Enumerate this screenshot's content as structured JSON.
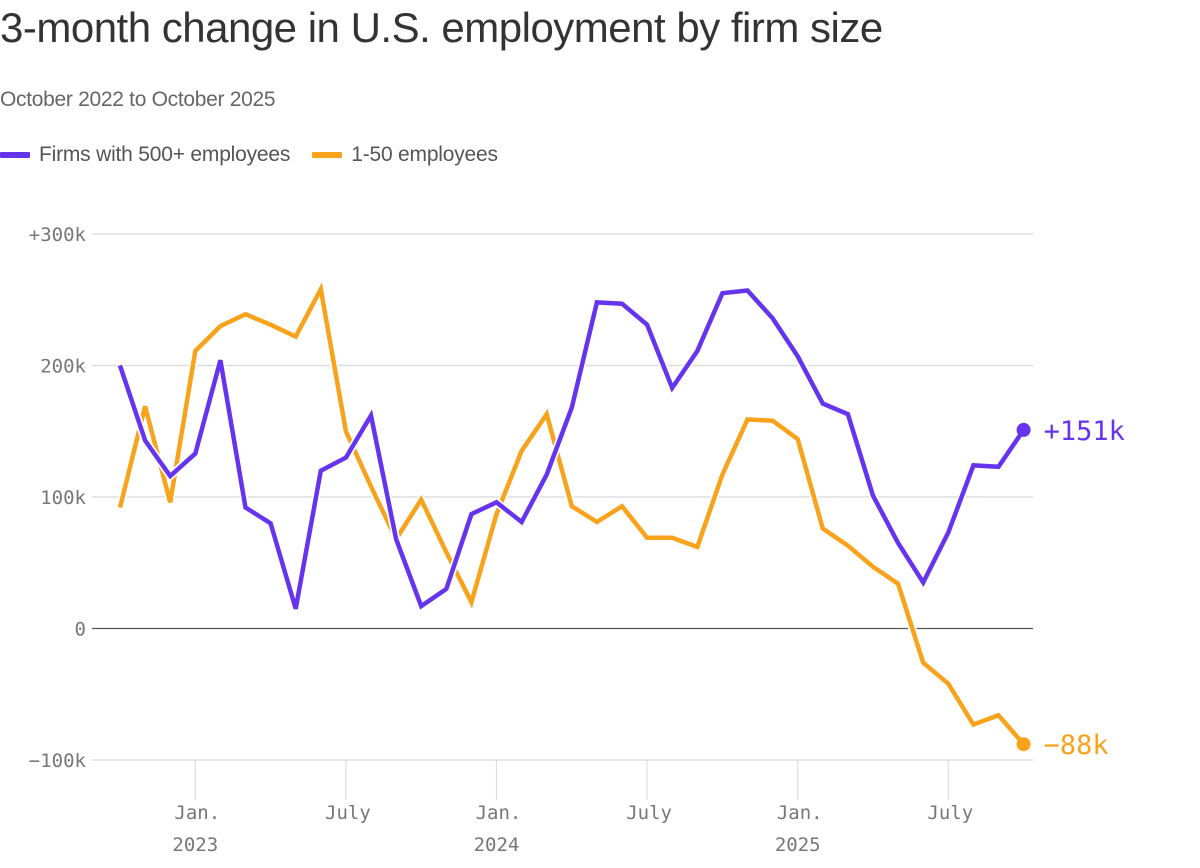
{
  "chart_data": {
    "type": "line",
    "title": "3-month change in U.S. employment by firm size",
    "subtitle": "October 2022 to October 2025",
    "xlabel": "",
    "ylabel": "",
    "ylim": [
      -100000,
      300000
    ],
    "grid": true,
    "legend_position": "top-left",
    "y_ticks": [
      {
        "value": 300000,
        "label": "+300k"
      },
      {
        "value": 200000,
        "label": "200k"
      },
      {
        "value": 100000,
        "label": "100k"
      },
      {
        "value": 0,
        "label": "0"
      },
      {
        "value": -100000,
        "label": "−100k"
      }
    ],
    "x_ticks": [
      {
        "month_index": 3,
        "label": "Jan.",
        "sublabel": "2023"
      },
      {
        "month_index": 9,
        "label": "July",
        "sublabel": ""
      },
      {
        "month_index": 15,
        "label": "Jan.",
        "sublabel": "2024"
      },
      {
        "month_index": 21,
        "label": "July",
        "sublabel": ""
      },
      {
        "month_index": 27,
        "label": "Jan.",
        "sublabel": "2025"
      },
      {
        "month_index": 33,
        "label": "July",
        "sublabel": ""
      }
    ],
    "x": [
      "2022-10",
      "2022-11",
      "2022-12",
      "2023-01",
      "2023-02",
      "2023-03",
      "2023-04",
      "2023-05",
      "2023-06",
      "2023-07",
      "2023-08",
      "2023-09",
      "2023-10",
      "2023-11",
      "2023-12",
      "2024-01",
      "2024-02",
      "2024-03",
      "2024-04",
      "2024-05",
      "2024-06",
      "2024-07",
      "2024-08",
      "2024-09",
      "2024-10",
      "2024-11",
      "2024-12",
      "2025-01",
      "2025-02",
      "2025-03",
      "2025-04",
      "2025-05",
      "2025-06",
      "2025-07",
      "2025-08",
      "2025-09",
      "2025-10"
    ],
    "series": [
      {
        "name": "Firms with 500+ employees",
        "color": "#6633ee",
        "end_label": "+151k",
        "values": [
          200000,
          143000,
          116000,
          133000,
          204000,
          92000,
          80000,
          15000,
          120000,
          130000,
          162000,
          68000,
          17000,
          30000,
          87000,
          96000,
          81000,
          117000,
          168000,
          248000,
          247000,
          231000,
          183000,
          211000,
          255000,
          257000,
          236000,
          207000,
          171000,
          163000,
          101000,
          65000,
          35000,
          73000,
          124000,
          123000,
          151000
        ]
      },
      {
        "name": "1-50 employees",
        "color": "#f9a21b",
        "end_label": "−88k",
        "values": [
          92000,
          169000,
          96000,
          211000,
          230000,
          239000,
          231000,
          222000,
          258000,
          150000,
          108000,
          68000,
          98000,
          58000,
          20000,
          87000,
          135000,
          163000,
          93000,
          81000,
          93000,
          69000,
          69000,
          62000,
          117000,
          159000,
          158000,
          144000,
          76000,
          63000,
          47000,
          34000,
          -26000,
          -42000,
          -73000,
          -66000,
          -88000
        ]
      }
    ]
  }
}
